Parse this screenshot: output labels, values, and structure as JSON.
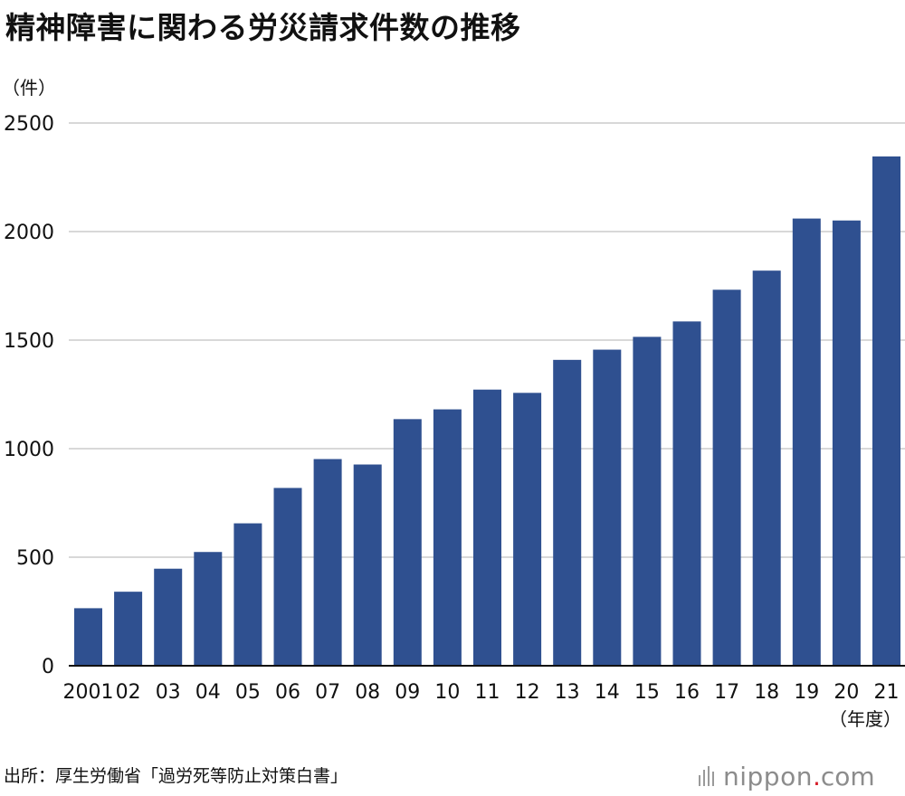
{
  "title": "精神障害に関わる労災請求件数の推移",
  "source": "出所：厚生労働省「過労死等防止対策白書」",
  "logo": {
    "name": "nippon",
    "dot": ".",
    "tld": "com"
  },
  "colors": {
    "bar": "#2f5090",
    "grid": "#cccccc",
    "axis": "#111111",
    "text": "#111111"
  },
  "chart_data": {
    "type": "bar",
    "title": "精神障害に関わる労災請求件数の推移",
    "ylabel": "（件）",
    "xlabel": "（年度）",
    "ylim": [
      0,
      2500
    ],
    "yticks": [
      0,
      500,
      1000,
      1500,
      2000,
      2500
    ],
    "grid": true,
    "categories": [
      "2001",
      "02",
      "03",
      "04",
      "05",
      "06",
      "07",
      "08",
      "09",
      "10",
      "11",
      "12",
      "13",
      "14",
      "15",
      "16",
      "17",
      "18",
      "19",
      "20",
      "21"
    ],
    "values": [
      265,
      341,
      447,
      524,
      656,
      819,
      952,
      927,
      1136,
      1181,
      1272,
      1257,
      1409,
      1456,
      1515,
      1586,
      1732,
      1820,
      2060,
      2051,
      2346
    ]
  }
}
